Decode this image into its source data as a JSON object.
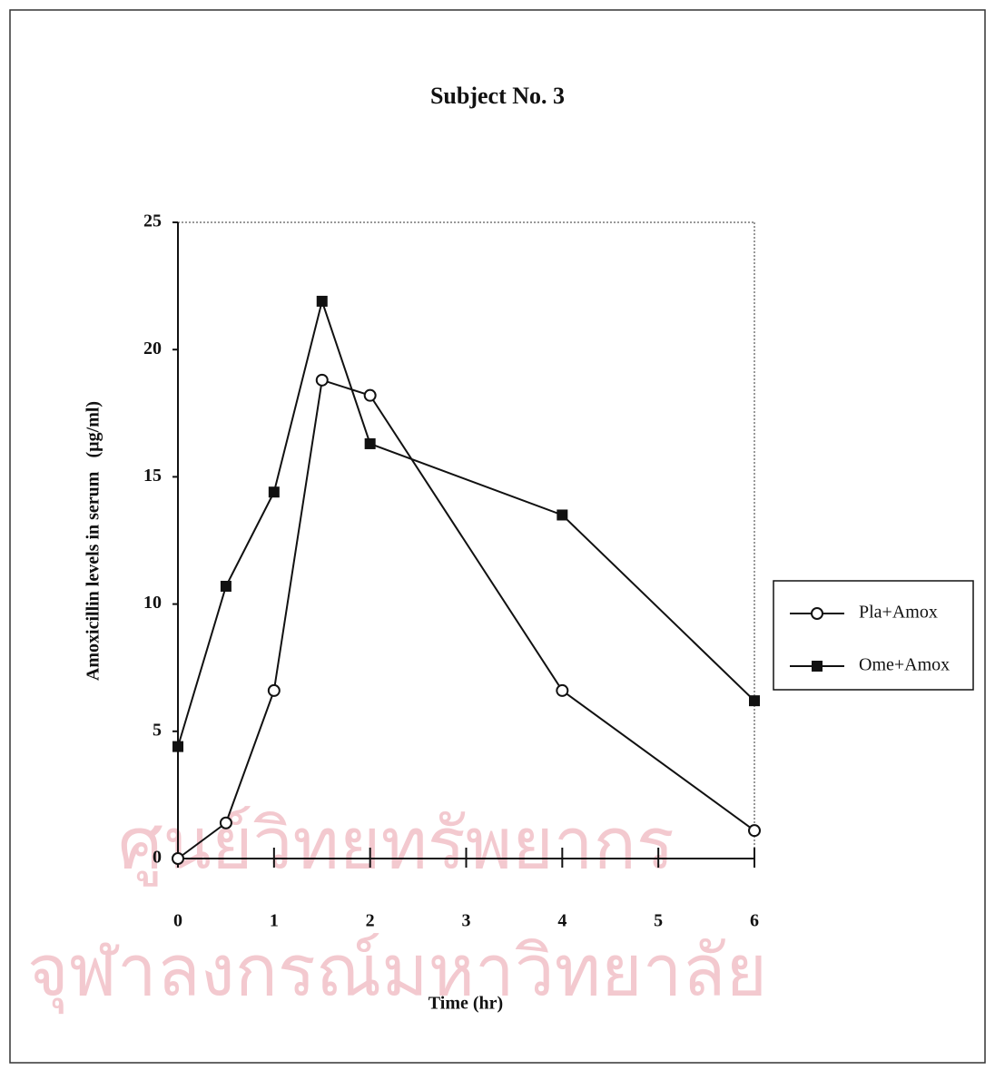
{
  "chart_data": {
    "type": "line",
    "title": "Subject No. 3",
    "x_label": "Time (hr)",
    "y_label": "Amoxicillin levels in serum   (µg/ml)",
    "x": [
      0,
      0.5,
      1,
      1.5,
      2,
      4,
      6
    ],
    "series": [
      {
        "name": "Pla+Amox",
        "color": "#111111",
        "marker": "open-circle",
        "values": [
          0,
          1.4,
          6.6,
          18.8,
          18.2,
          6.6,
          1.1
        ]
      },
      {
        "name": "Ome+Amox",
        "color": "#111111",
        "marker": "filled-square",
        "values": [
          4.4,
          10.7,
          14.4,
          21.9,
          16.3,
          13.5,
          6.2
        ]
      }
    ],
    "xlim": [
      0,
      6
    ],
    "xticks": [
      0,
      1,
      2,
      3,
      4,
      5,
      6
    ],
    "ylim": [
      0,
      25
    ],
    "yticks": [
      0,
      5,
      10,
      15,
      20,
      25
    ],
    "legend": "right",
    "watermark": [
      "ศูนย์วิทยทรัพยากร",
      "จุฬาลงกรณ์มหาวิทยาลัย"
    ]
  }
}
